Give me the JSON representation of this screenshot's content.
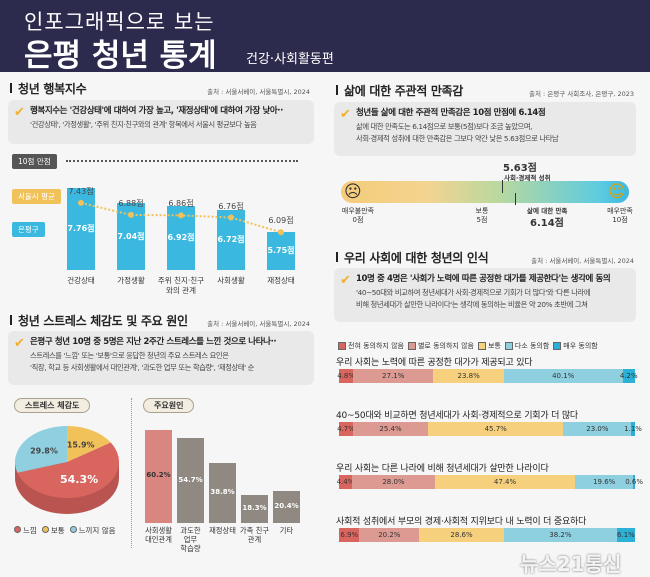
{
  "header": {
    "subtitle": "인포그래픽으로 보는",
    "title": "은평 청년 통계",
    "edition": "건강·사회활동편"
  },
  "happiness": {
    "title": "청년 행복지수",
    "source": "출처 : 서울서베이, 서울특별시, 2024",
    "main": "행복지수는 '건강상태'에 대하여 가장 높고, '재정상태'에 대하여 가장 낮아··",
    "sub": "'건강상태', '가정생활', '주위 친지·친구와의 관계' 항목에서 서울시 평균보다 높음",
    "max_label": "10점 만점",
    "seoul_label": "서울시 평균",
    "ep_label": "은평구"
  },
  "stress": {
    "title": "청년 스트레스 체감도 및 주요 원인",
    "source": "출처 : 서울서베이, 서울특별시, 2024",
    "main": "은평구 청년 10명 중 5명은 지난 2주간 스트레스를 느낀 것으로 나타나··",
    "sub1": "스트레스를 '느낌' 또는 '보통'으로 응답한 청년의 주요 스트레스 요인은",
    "sub2": "'직장, 학교 등 사회생활에서 대인관계', '과도한 업무 또는 학습량', '재정상태' 순",
    "pie_title": "스트레스 체감도",
    "cause_title": "주요원인"
  },
  "satisfaction": {
    "title": "삶에 대한 주관적 만족감",
    "source": "출처 : 은평구 사회조사, 은평구, 2023",
    "main": "청년들 삶에 대한 주관적 만족감은 10점 만점에 6.14점",
    "sub1": "삶에 대한 만족도는 6.14점으로 보통(5점)보다 조금 높았으며,",
    "sub2": "사회·경제적 성취에 대한 만족감은 그보다 약간 낮은 5.63점으로 나타남",
    "econ_value": "5.63점",
    "econ_label": "사회·경제적 성취",
    "life_label": "삶에 대한 만족",
    "life_value": "6.14점",
    "min_label": "매우불만족",
    "min_value": "0점",
    "mid_label": "보통",
    "mid_value": "5점",
    "max_label": "매우만족",
    "max_value": "10점",
    "scale": {
      "min": 0,
      "mid": 5,
      "max": 10,
      "econ": 5.63,
      "life": 6.14
    }
  },
  "perception": {
    "title": "우리 사회에 대한 청년의 인식",
    "source": "출처 : 서울서베이, 서울특별시, 2024",
    "main": "10명 중 4명은 '사회가 노력에 따른 공정한 대가를 제공한다'는 생각에 동의",
    "sub1": "'40~50대와 비교하여 청년세대가 사회·경제적으로 기회가 더 많다'와 '다른 나라에",
    "sub2": "비해 청년세대가 살만한 나라이다'는 생각에 동의하는 비율은 약 20% 초반에 그쳐"
  },
  "watermark": "뉴스21통신",
  "chart_data": [
    {
      "type": "bar",
      "title": "",
      "categories": [
        "건강상태",
        "가정생활",
        "주위 친지·친구와의 관계",
        "사회생활",
        "재정상태"
      ],
      "series": [
        {
          "name": "은평구",
          "values": [
            7.76,
            7.04,
            6.92,
            6.72,
            5.75
          ],
          "labels": [
            "7.76점",
            "7.04점",
            "6.92점",
            "6.72점",
            "5.75점"
          ],
          "color": "#3ab8df"
        },
        {
          "name": "서울시 평균",
          "values": [
            7.43,
            6.88,
            6.86,
            6.76,
            6.09
          ],
          "labels": [
            "7.43점",
            "6.88점",
            "6.86점",
            "6.76점",
            "6.09점"
          ],
          "color": "#f2c25a"
        }
      ]
    },
    {
      "type": "pie",
      "title": "스트레스 체감도",
      "categories": [
        "느낌",
        "보통",
        "느끼지 않음"
      ],
      "values": [
        54.3,
        15.9,
        29.8
      ],
      "labels": [
        "54.3%",
        "15.9%",
        "29.8%"
      ],
      "colors": [
        "#d9655f",
        "#f2c25a",
        "#8fcfe0"
      ]
    },
    {
      "type": "bar",
      "title": "주요원인",
      "categories": [
        "사회생활 대인관계",
        "과도한 업무 학습량",
        "재정상태",
        "가족 친구 관계",
        "기타"
      ],
      "values": [
        60.2,
        54.7,
        38.8,
        18.3,
        20.4
      ],
      "labels": [
        "60.2%",
        "54.7%",
        "38.8%",
        "18.3%",
        "20.4%"
      ]
    },
    {
      "type": "bar",
      "stacked": true,
      "orientation": "horizontal",
      "legend": [
        "전혀 동의하지 않음",
        "별로 동의하지 않음",
        "보통",
        "다소 동의함",
        "매우 동의함"
      ],
      "colors": [
        "#d9655f",
        "#dc9a93",
        "#f6d07c",
        "#8fd0e0",
        "#2db0d6"
      ],
      "categories": [
        "우리 사회는 노력에 따른 공정한 대가가 제공되고 있다",
        "40~50대와 비교하면 청년세대가 사회·경제적으로 기회가 더 많다",
        "우리 사회는 다른 나라에 비해 청년세대가 살만한 나라이다",
        "사회적 성취에서 부모의 경제·사회적 지위보다 내 노력이 더 중요하다"
      ],
      "values": [
        [
          4.8,
          27.1,
          23.8,
          40.1,
          4.2
        ],
        [
          4.7,
          25.4,
          45.7,
          23.0,
          1.1
        ],
        [
          4.4,
          28.0,
          47.4,
          19.6,
          0.6
        ],
        [
          6.9,
          20.2,
          28.6,
          38.2,
          6.1
        ]
      ]
    }
  ]
}
